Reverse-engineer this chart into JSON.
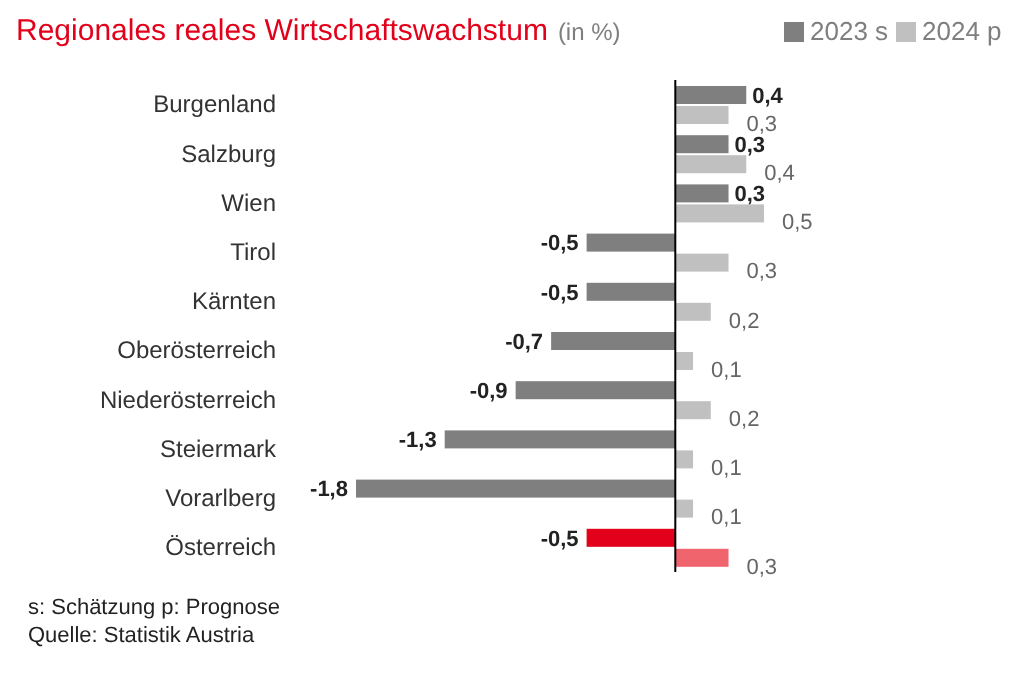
{
  "chart_data": {
    "type": "bar",
    "orientation": "horizontal",
    "title": "Regionales reales Wirtschaftswachstum",
    "subtitle": "(in %)",
    "categories": [
      "Burgenland",
      "Salzburg",
      "Wien",
      "Tirol",
      "Kärnten",
      "Oberösterreich",
      "Niederösterreich",
      "Steiermark",
      "Vorarlberg",
      "Österreich"
    ],
    "series": [
      {
        "name": "2023 s",
        "color": "#7f7f7f",
        "colors": [
          "#7f7f7f",
          "#7f7f7f",
          "#7f7f7f",
          "#7f7f7f",
          "#7f7f7f",
          "#7f7f7f",
          "#7f7f7f",
          "#7f7f7f",
          "#7f7f7f",
          "#e2001a"
        ],
        "values": [
          0.4,
          0.3,
          0.3,
          -0.5,
          -0.5,
          -0.7,
          -0.9,
          -1.3,
          -1.8,
          -0.5
        ],
        "value_labels": [
          "0,4",
          "0,3",
          "0,3",
          "-0,5",
          "-0,5",
          "-0,7",
          "-0,9",
          "-1,3",
          "-1,8",
          "-0,5"
        ]
      },
      {
        "name": "2024 p",
        "color": "#c0c0c0",
        "colors": [
          "#c0c0c0",
          "#c0c0c0",
          "#c0c0c0",
          "#c0c0c0",
          "#c0c0c0",
          "#c0c0c0",
          "#c0c0c0",
          "#c0c0c0",
          "#c0c0c0",
          "#f0646e"
        ],
        "values": [
          0.3,
          0.4,
          0.5,
          0.3,
          0.2,
          0.1,
          0.2,
          0.1,
          0.1,
          0.3
        ],
        "value_labels": [
          "0,3",
          "0,4",
          "0,5",
          "0,3",
          "0,2",
          "0,1",
          "0,2",
          "0,1",
          "0,1",
          "0,3"
        ]
      }
    ],
    "legend": "top right",
    "annotations": [
      "s: Schätzung   p: Prognose",
      "Quelle: Statistik Austria"
    ]
  }
}
